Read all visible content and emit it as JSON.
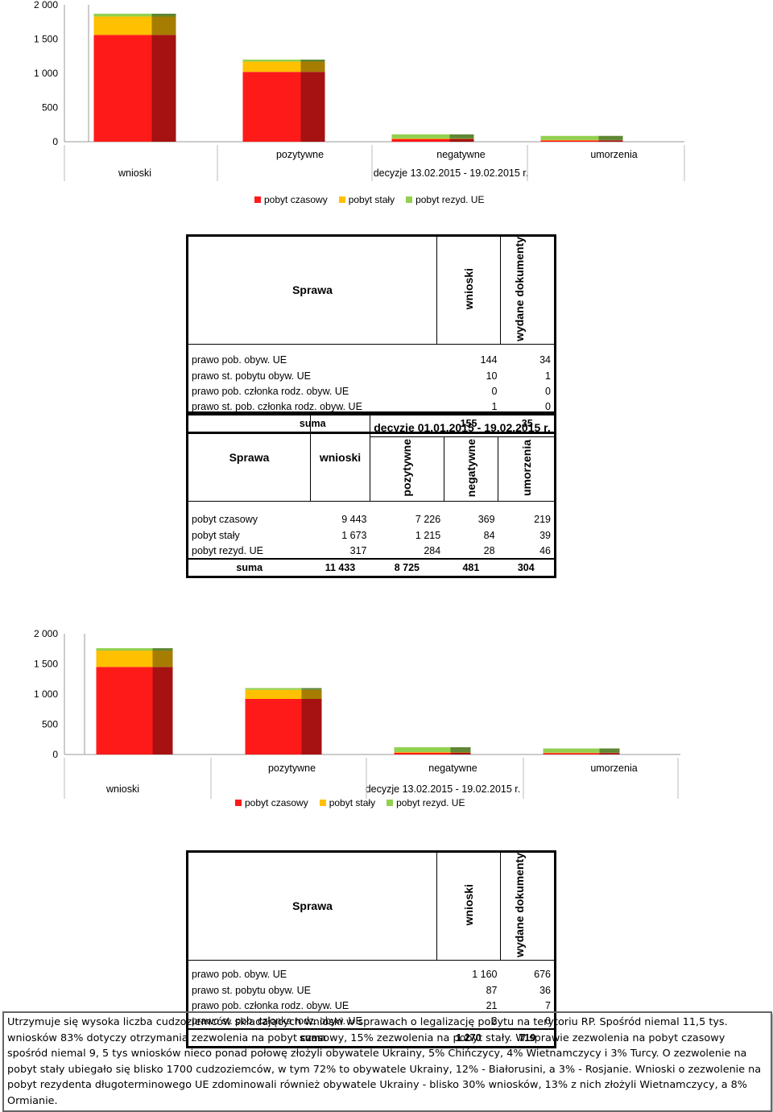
{
  "colors": {
    "czasowy": "#ff1a1a",
    "staly": "#ffc000",
    "rezyd": "#92d050",
    "side_dark": "#a00000"
  },
  "chart_data": [
    {
      "type": "bar",
      "stacked": true,
      "title": "",
      "y_ticks": [
        "2 000",
        "1 500",
        "1 000",
        "500",
        "0"
      ],
      "ylim": [
        0,
        2000
      ],
      "categories": [
        "wnioski",
        "pozytywne",
        "negatywne",
        "umorzenia"
      ],
      "category_group_label": "decyzje 13.02.2015 - 19.02.2015 r.",
      "series": [
        {
          "name": "pobyt czasowy",
          "values": [
            1560,
            1020,
            40,
            20
          ]
        },
        {
          "name": "pobyt stały",
          "values": [
            270,
            150,
            8,
            5
          ]
        },
        {
          "name": "pobyt rezyd. UE",
          "values": [
            40,
            30,
            60,
            60
          ]
        }
      ],
      "legend_position": "bottom"
    },
    {
      "type": "bar",
      "stacked": true,
      "title": "",
      "y_ticks": [
        "2 000",
        "1 500",
        "1 000",
        "500",
        "0"
      ],
      "ylim": [
        0,
        2000
      ],
      "categories": [
        "wnioski",
        "pozytywne",
        "negatywne",
        "umorzenia"
      ],
      "category_group_label": "decyzje 13.02.2015 - 19.02.2015 r.",
      "series": [
        {
          "name": "pobyt czasowy",
          "values": [
            1450,
            920,
            30,
            25
          ]
        },
        {
          "name": "pobyt stały",
          "values": [
            270,
            150,
            10,
            5
          ]
        },
        {
          "name": "pobyt rezyd. UE",
          "values": [
            40,
            30,
            80,
            70
          ]
        }
      ],
      "legend_position": "bottom"
    }
  ],
  "table1": {
    "header": {
      "sprawa": "Sprawa",
      "wnioski": "wnioski",
      "wydane": "wydane dokumenty"
    },
    "rows": [
      {
        "label": "prawo pob. obyw. UE",
        "wnioski": "144",
        "wydane": "34"
      },
      {
        "label": "prawo st. pobytu obyw. UE",
        "wnioski": "10",
        "wydane": "1"
      },
      {
        "label": "prawo pob. członka rodz. obyw. UE",
        "wnioski": "0",
        "wydane": "0"
      },
      {
        "label": "prawo st. pob. członka rodz. obyw. UE",
        "wnioski": "1",
        "wydane": "0"
      }
    ],
    "sum": {
      "label": "suma",
      "wnioski": "155",
      "wydane": "35"
    }
  },
  "table2": {
    "header": {
      "sprawa": "Sprawa",
      "wnioski": "wnioski",
      "group": "decyzje 01.01.2015 - 19.02.2015 r.",
      "pozytywne": "pozytywne",
      "negatywne": "negatywne",
      "umorzenia": "umorzenia"
    },
    "rows": [
      {
        "label": "pobyt czasowy",
        "wnioski": "9 443",
        "pozytywne": "7 226",
        "negatywne": "369",
        "umorzenia": "219"
      },
      {
        "label": "pobyt stały",
        "wnioski": "1 673",
        "pozytywne": "1 215",
        "negatywne": "84",
        "umorzenia": "39"
      },
      {
        "label": "pobyt rezyd. UE",
        "wnioski": "317",
        "pozytywne": "284",
        "negatywne": "28",
        "umorzenia": "46"
      }
    ],
    "sum": {
      "label": "suma",
      "wnioski": "11 433",
      "pozytywne": "8 725",
      "negatywne": "481",
      "umorzenia": "304"
    }
  },
  "table3": {
    "header": {
      "sprawa": "Sprawa",
      "wnioski": "wnioski",
      "wydane": "wydane dokumenty"
    },
    "rows": [
      {
        "label": "prawo pob. obyw. UE",
        "wnioski": "1 160",
        "wydane": "676"
      },
      {
        "label": "prawo st. pobytu obyw. UE",
        "wnioski": "87",
        "wydane": "36"
      },
      {
        "label": "prawo pob. członka rodz. obyw. UE",
        "wnioski": "21",
        "wydane": "7"
      },
      {
        "label": "prawo st. pob. członka rodz. obyw. UE",
        "wnioski": "2",
        "wydane": "0"
      }
    ],
    "sum": {
      "label": "suma",
      "wnioski": "1 270",
      "wydane": "719"
    }
  },
  "note": "Utrzymuje się wysoka liczba cudzoziemców składających wnioski w sprawach o legalizację pobytu na terytoriu RP. Spośród niemal 11,5 tys. wniosków 83% dotyczy otrzymania zezwolenia na pobyt czasowy, 15% zezwolenia na pobyt stały. W sprawie zezwolenia na pobyt czasowy spośród  niemal 9, 5 tys wniosków nieco ponad połowę  złożyli obywatele Ukrainy, 5% Chińczycy, 4% Wietnamczycy i 3% Turcy. O zezwolenie na pobyt stały ubiegało się blisko 1700 cudzoziemców, w tym 72% to obywatele Ukrainy, 12% - Białorusini, a 3% - Rosjanie. Wnioski o zezwolenie na pobyt rezydenta długoterminowego UE zdominowali również obywatele Ukrainy - blisko 30% wniosków, 13% z nich złożyli Wietnamczycy, a 8% Ormianie."
}
